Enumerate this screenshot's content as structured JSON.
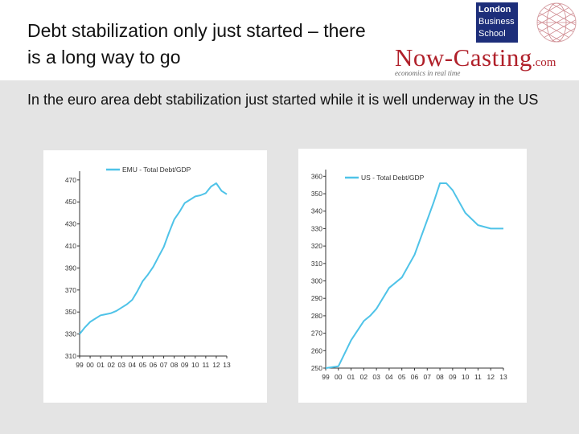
{
  "slide": {
    "title": "Debt stabilization only just started – there is a long way to go",
    "subtitle": "In the euro area debt stabilization just started while it is well underway in the US"
  },
  "logos": {
    "lbs": [
      "London",
      "Business",
      "School"
    ],
    "nowcasting": {
      "main": "Now-Casting",
      "suffix": ".com",
      "tagline": "economics in real time"
    }
  },
  "colors": {
    "series": "#4fc3e8",
    "background": "#e4e4e4",
    "logo_blue": "#1d2e7a",
    "logo_red": "#b0202a"
  },
  "chart_data": [
    {
      "type": "line",
      "series": [
        {
          "name": "EMU - Total Debt/GDP",
          "x": [
            1999,
            1999.5,
            2000,
            2000.5,
            2001,
            2001.5,
            2002,
            2002.5,
            2003,
            2003.5,
            2004,
            2004.5,
            2005,
            2005.5,
            2006,
            2006.5,
            2007,
            2007.5,
            2008,
            2008.5,
            2009,
            2009.5,
            2010,
            2010.5,
            2011,
            2011.5,
            2012,
            2012.5,
            2013
          ],
          "values": [
            330,
            336,
            341,
            344,
            347,
            348,
            349,
            351,
            354,
            357,
            361,
            369,
            378,
            384,
            391,
            400,
            409,
            422,
            434,
            441,
            449,
            452,
            455,
            456,
            458,
            464,
            467,
            460,
            457
          ]
        }
      ],
      "x_ticks": [
        "99",
        "00",
        "01",
        "02",
        "03",
        "04",
        "05",
        "06",
        "07",
        "08",
        "09",
        "10",
        "11",
        "12",
        "13"
      ],
      "y_ticks": [
        "310",
        "330",
        "350",
        "370",
        "390",
        "410",
        "430",
        "450",
        "470"
      ],
      "xlim": [
        1999,
        2013
      ],
      "ylim": [
        310,
        475
      ],
      "legend": "top-left"
    },
    {
      "type": "line",
      "series": [
        {
          "name": "US - Total Debt/GDP",
          "x": [
            1999,
            2000,
            2001,
            2002,
            2002.5,
            2003,
            2004,
            2004.5,
            2005,
            2006,
            2007,
            2007.5,
            2008,
            2008.5,
            2009,
            2010,
            2011,
            2012,
            2013
          ],
          "values": [
            250,
            251,
            266,
            277,
            280,
            284,
            296,
            299,
            302,
            315,
            335,
            345,
            356,
            356,
            352,
            339,
            332,
            330,
            330
          ]
        }
      ],
      "x_ticks": [
        "99",
        "00",
        "01",
        "02",
        "03",
        "04",
        "05",
        "06",
        "07",
        "08",
        "09",
        "10",
        "11",
        "12",
        "13"
      ],
      "y_ticks": [
        "250",
        "260",
        "270",
        "280",
        "290",
        "300",
        "310",
        "320",
        "330",
        "340",
        "350",
        "360"
      ],
      "xlim": [
        1999,
        2013
      ],
      "ylim": [
        250,
        362
      ],
      "legend": "top-left"
    }
  ]
}
